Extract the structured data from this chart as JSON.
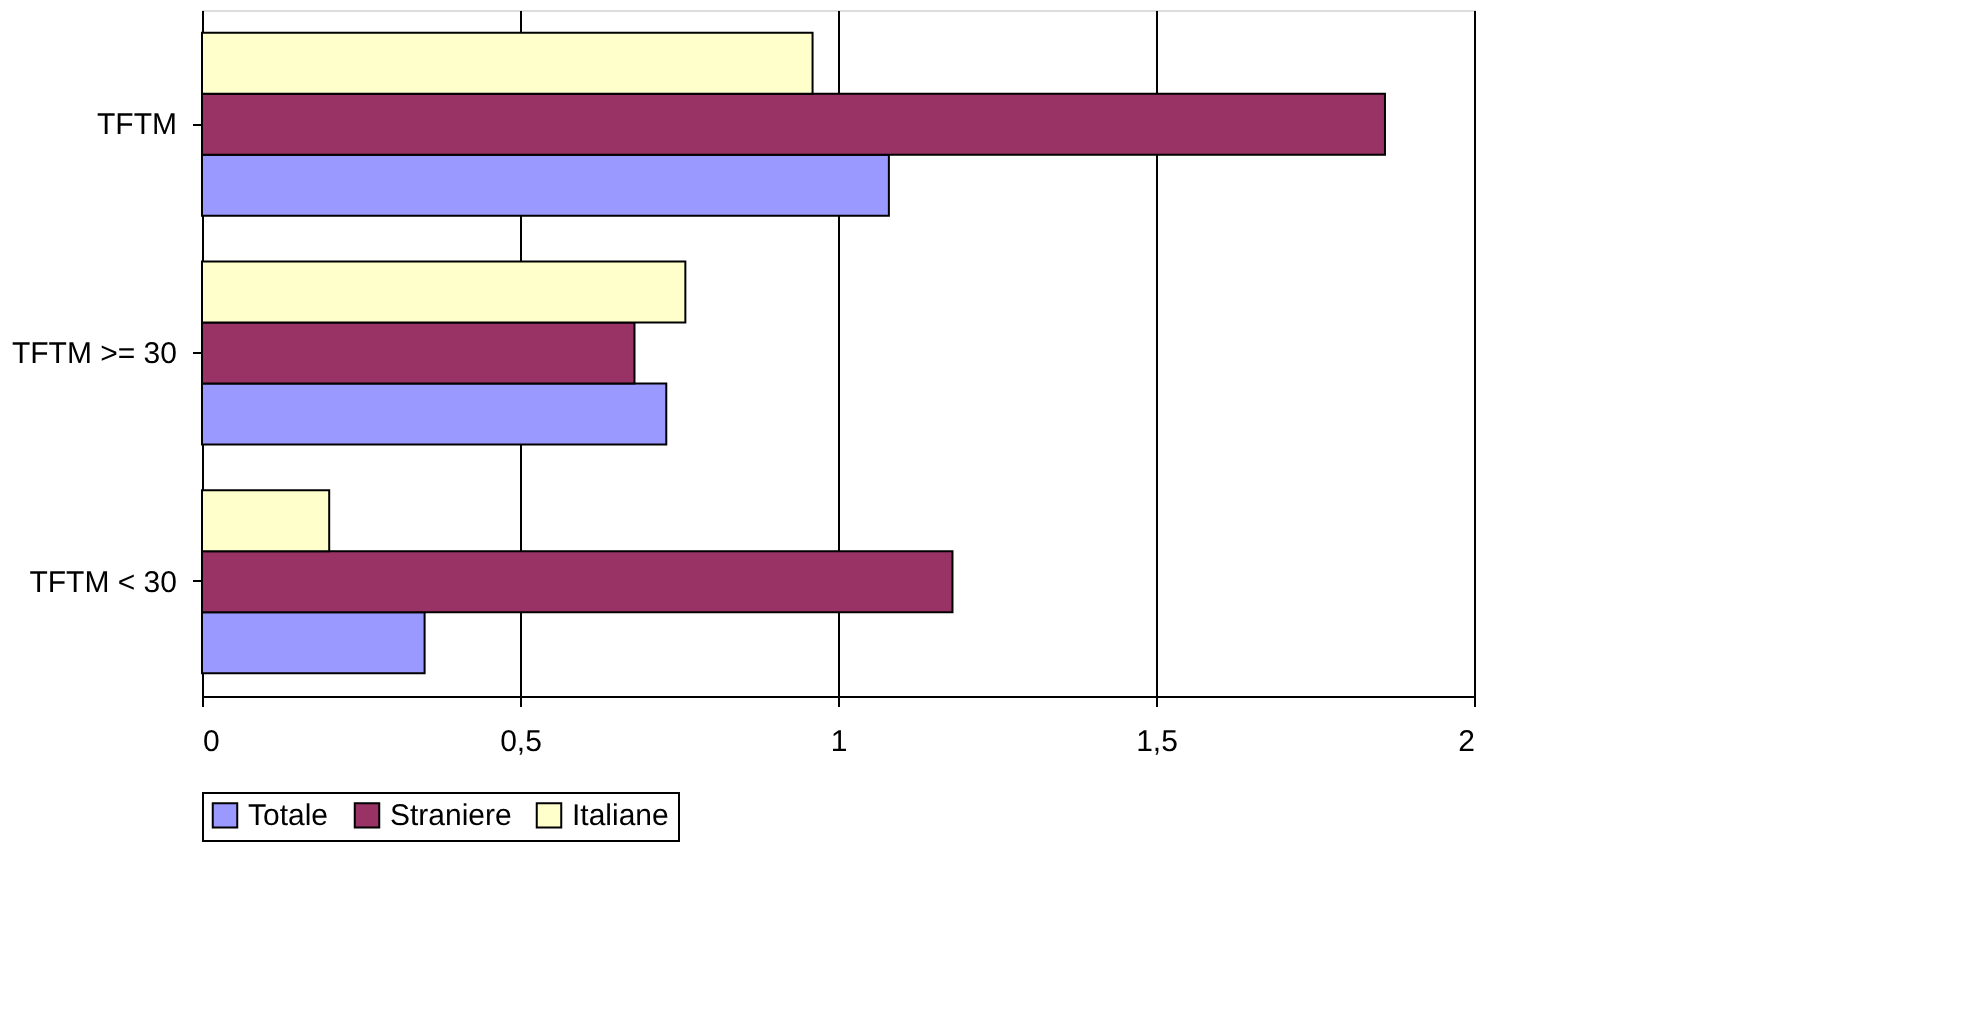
{
  "chart_data": {
    "type": "bar",
    "orientation": "horizontal",
    "categories": [
      "TFTM",
      "TFTM >= 30",
      "TFTM < 30"
    ],
    "series": [
      {
        "name": "Totale",
        "color": "#9999ff",
        "values": [
          1.08,
          0.73,
          0.35
        ]
      },
      {
        "name": "Straniere",
        "color": "#993366",
        "values": [
          1.86,
          0.68,
          1.18
        ]
      },
      {
        "name": "Italiane",
        "color": "#ffffcc",
        "values": [
          0.96,
          0.76,
          0.2
        ]
      }
    ],
    "xlim": [
      0,
      2
    ],
    "xticks": [
      0,
      {
        "value": 0.5,
        "label": "0,5"
      },
      1,
      {
        "value": 1.5,
        "label": "1,5"
      },
      2
    ],
    "grid": "x",
    "legend": "bottom"
  }
}
